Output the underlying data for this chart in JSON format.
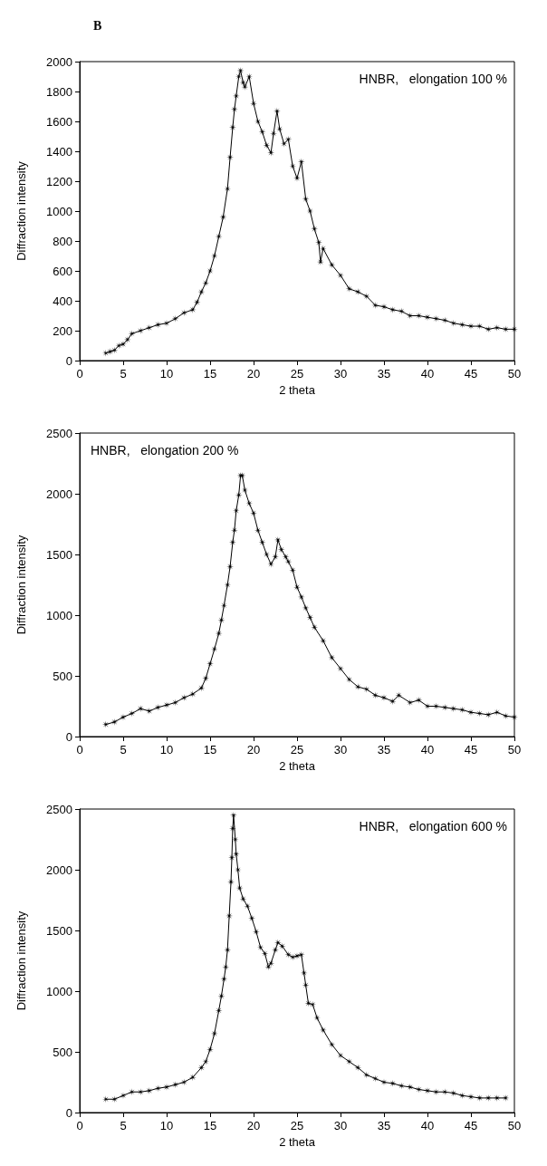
{
  "chart_data": [
    {
      "type": "line",
      "title": "B",
      "xlabel": "2 theta",
      "ylabel": "Diffraction intensity",
      "annotations": [
        "HNBR,   elongation 100 %"
      ],
      "marker": "star",
      "line_style": "solid",
      "xlim": [
        0,
        50
      ],
      "xticks": [
        0,
        5,
        10,
        15,
        20,
        25,
        30,
        35,
        40,
        45,
        50
      ],
      "ylim": [
        0,
        2000
      ],
      "yticks": [
        0,
        200,
        400,
        600,
        800,
        1000,
        1200,
        1400,
        1600,
        1800,
        2000
      ],
      "series": [
        {
          "color": "#000000",
          "x": [
            3,
            3.5,
            4,
            4.5,
            5,
            5.5,
            6,
            7,
            8,
            9,
            10,
            11,
            12,
            13,
            13.5,
            14,
            14.5,
            15,
            15.5,
            16,
            16.5,
            17,
            17.3,
            17.6,
            17.8,
            18,
            18.3,
            18.5,
            18.8,
            19,
            19.5,
            20,
            20.5,
            21,
            21.5,
            22,
            22.3,
            22.7,
            23,
            23.5,
            24,
            24.5,
            25,
            25.5,
            26,
            26.5,
            27,
            27.5,
            27.7,
            28,
            29,
            30,
            31,
            32,
            33,
            34,
            35,
            36,
            37,
            38,
            39,
            40,
            41,
            42,
            43,
            44,
            45,
            46,
            47,
            48,
            49,
            50
          ],
          "values": [
            50,
            60,
            70,
            100,
            110,
            140,
            180,
            200,
            220,
            240,
            250,
            280,
            320,
            340,
            390,
            460,
            520,
            600,
            700,
            830,
            960,
            1150,
            1360,
            1560,
            1680,
            1770,
            1900,
            1940,
            1860,
            1830,
            1900,
            1720,
            1600,
            1530,
            1440,
            1390,
            1520,
            1670,
            1550,
            1450,
            1480,
            1300,
            1220,
            1330,
            1080,
            1000,
            880,
            790,
            660,
            750,
            640,
            570,
            480,
            460,
            430,
            370,
            360,
            340,
            330,
            300,
            300,
            290,
            280,
            270,
            250,
            240,
            230,
            230,
            210,
            220,
            210,
            210
          ]
        }
      ]
    },
    {
      "type": "line",
      "xlabel": "2 theta",
      "ylabel": "Diffraction intensity",
      "annotations": [
        "HNBR,   elongation 200 %"
      ],
      "marker": "star",
      "line_style": "solid",
      "xlim": [
        0,
        50
      ],
      "xticks": [
        0,
        5,
        10,
        15,
        20,
        25,
        30,
        35,
        40,
        45,
        50
      ],
      "ylim": [
        0,
        2500
      ],
      "yticks": [
        0,
        500,
        1000,
        1500,
        2000,
        2500
      ],
      "series": [
        {
          "color": "#000000",
          "x": [
            3,
            4,
            5,
            6,
            7,
            8,
            9,
            10,
            11,
            12,
            13,
            14,
            14.5,
            15,
            15.5,
            16,
            16.3,
            16.6,
            17,
            17.3,
            17.6,
            17.8,
            18,
            18.3,
            18.5,
            18.7,
            19,
            19.5,
            20,
            20.5,
            21,
            21.5,
            22,
            22.5,
            22.8,
            23.2,
            23.7,
            24,
            24.5,
            25,
            25.5,
            26,
            26.5,
            27,
            28,
            29,
            30,
            31,
            32,
            33,
            34,
            35,
            36,
            36.7,
            38,
            39,
            40,
            41,
            42,
            43,
            44,
            45,
            46,
            47,
            48,
            49,
            50
          ],
          "values": [
            100,
            120,
            160,
            190,
            230,
            210,
            240,
            260,
            280,
            320,
            350,
            400,
            480,
            600,
            720,
            850,
            960,
            1080,
            1250,
            1400,
            1600,
            1700,
            1860,
            1990,
            2150,
            2150,
            2030,
            1920,
            1840,
            1700,
            1600,
            1500,
            1420,
            1480,
            1620,
            1540,
            1480,
            1440,
            1370,
            1230,
            1150,
            1060,
            980,
            900,
            790,
            650,
            560,
            470,
            410,
            390,
            340,
            320,
            290,
            340,
            280,
            300,
            250,
            250,
            240,
            230,
            220,
            200,
            190,
            180,
            200,
            170,
            160
          ]
        }
      ]
    },
    {
      "type": "line",
      "xlabel": "2 theta",
      "ylabel": "Diffraction intensity",
      "annotations": [
        "HNBR,   elongation 600 %"
      ],
      "marker": "star",
      "line_style": "solid",
      "xlim": [
        0,
        50
      ],
      "xticks": [
        0,
        5,
        10,
        15,
        20,
        25,
        30,
        35,
        40,
        45,
        50
      ],
      "ylim": [
        0,
        2500
      ],
      "yticks": [
        0,
        500,
        1000,
        1500,
        2000,
        2500
      ],
      "series": [
        {
          "color": "#000000",
          "x": [
            3,
            4,
            5,
            6,
            7,
            8,
            9,
            10,
            11,
            12,
            13,
            14,
            14.5,
            15,
            15.5,
            16,
            16.3,
            16.6,
            16.8,
            17,
            17.2,
            17.4,
            17.5,
            17.6,
            17.7,
            17.9,
            18,
            18.2,
            18.4,
            18.8,
            19.3,
            19.8,
            20.3,
            20.8,
            21.3,
            21.7,
            22,
            22.5,
            22.8,
            23.3,
            24,
            24.5,
            25,
            25.5,
            25.8,
            26,
            26.3,
            26.8,
            27.3,
            28,
            29,
            30,
            31,
            32,
            33,
            34,
            35,
            36,
            37,
            38,
            39,
            40,
            41,
            42,
            43,
            44,
            45,
            46,
            47,
            48,
            49
          ],
          "values": [
            110,
            110,
            140,
            170,
            170,
            180,
            200,
            210,
            230,
            250,
            290,
            370,
            420,
            520,
            650,
            840,
            960,
            1100,
            1200,
            1340,
            1620,
            1900,
            2100,
            2340,
            2450,
            2250,
            2130,
            2000,
            1850,
            1760,
            1700,
            1600,
            1490,
            1360,
            1310,
            1200,
            1230,
            1340,
            1400,
            1370,
            1300,
            1280,
            1290,
            1300,
            1150,
            1050,
            900,
            890,
            780,
            680,
            560,
            470,
            420,
            370,
            310,
            280,
            250,
            240,
            220,
            210,
            190,
            180,
            170,
            170,
            160,
            140,
            130,
            120,
            120,
            120,
            120
          ]
        }
      ]
    }
  ]
}
